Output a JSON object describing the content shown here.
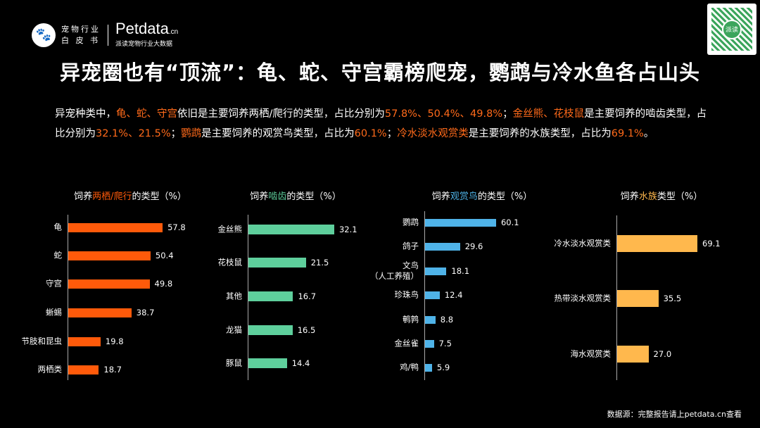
{
  "header": {
    "logo_cn_line1": "宠物行业",
    "logo_cn_line2": "白 皮 书",
    "brand": "Petdata",
    "brand_suffix": ".cn",
    "brand_sub": "派读宠物行业大数据",
    "qr_label": "派读"
  },
  "title": "异宠圈也有“顶流”：龟、蛇、守宫霸榜爬宠，鹦鹉与冷水鱼各占山头",
  "paragraph": [
    {
      "text": "异宠种类中，",
      "hl": false
    },
    {
      "text": "龟、蛇、守宫",
      "hl": true
    },
    {
      "text": "依旧是主要饲养两栖/爬行的类型，占比分别为",
      "hl": false
    },
    {
      "text": "57.8%、50.4%、49.8%",
      "hl": true
    },
    {
      "text": "；",
      "hl": false
    },
    {
      "text": "金丝熊、花枝鼠",
      "hl": true
    },
    {
      "text": "是主要饲养的啮齿类型，占比分别为",
      "hl": false
    },
    {
      "text": "32.1%、21.5%",
      "hl": true
    },
    {
      "text": "；",
      "hl": false
    },
    {
      "text": "鹦鹉",
      "hl": true
    },
    {
      "text": "是主要饲养的观赏鸟类型，占比为",
      "hl": false
    },
    {
      "text": "60.1%",
      "hl": true
    },
    {
      "text": "；",
      "hl": false
    },
    {
      "text": "冷水淡水观赏类",
      "hl": true
    },
    {
      "text": "是主要饲养的水族类型，占比为",
      "hl": false
    },
    {
      "text": "69.1%",
      "hl": true
    },
    {
      "text": "。",
      "hl": false
    }
  ],
  "source": "数据源：完整报告请上petdata.cn查看",
  "chart_data": [
    {
      "type": "bar",
      "orientation": "horizontal",
      "title_parts": [
        "饲养",
        "两栖/爬行",
        "的类型（%）"
      ],
      "color": "#ff5a0a",
      "title_color": "#ff5a0a",
      "categories": [
        "龟",
        "蛇",
        "守宫",
        "蜥蜴",
        "节肢和昆虫",
        "两栖类"
      ],
      "values": [
        57.8,
        50.4,
        49.8,
        38.7,
        19.8,
        18.7
      ]
    },
    {
      "type": "bar",
      "orientation": "horizontal",
      "title_parts": [
        "饲养",
        "啮齿",
        "的类型（%）"
      ],
      "color": "#5ecf9c",
      "title_color": "#5ecf9c",
      "categories": [
        "金丝熊",
        "花枝鼠",
        "其他",
        "龙猫",
        "豚鼠"
      ],
      "values": [
        32.1,
        21.5,
        16.7,
        16.5,
        14.4
      ]
    },
    {
      "type": "bar",
      "orientation": "horizontal",
      "title_parts": [
        "饲养",
        "观赏鸟",
        "的类型（%）"
      ],
      "color": "#4fb3e8",
      "title_color": "#4fb3e8",
      "categories": [
        "鹦鹉",
        "鸽子",
        "文鸟\n（人工养殖）",
        "珍珠鸟",
        "鹌鹑",
        "金丝雀",
        "鸡/鸭"
      ],
      "values": [
        60.1,
        29.6,
        18.1,
        12.4,
        8.8,
        7.5,
        5.9
      ]
    },
    {
      "type": "bar",
      "orientation": "horizontal",
      "title_parts": [
        "饲养",
        "水族",
        "类型（%）"
      ],
      "color": "#ffb84d",
      "title_color": "#ffb84d",
      "categories": [
        "冷水淡水观赏类",
        "热带淡水观赏类",
        "海水观赏类"
      ],
      "values": [
        69.1,
        35.5,
        27.0
      ]
    }
  ]
}
